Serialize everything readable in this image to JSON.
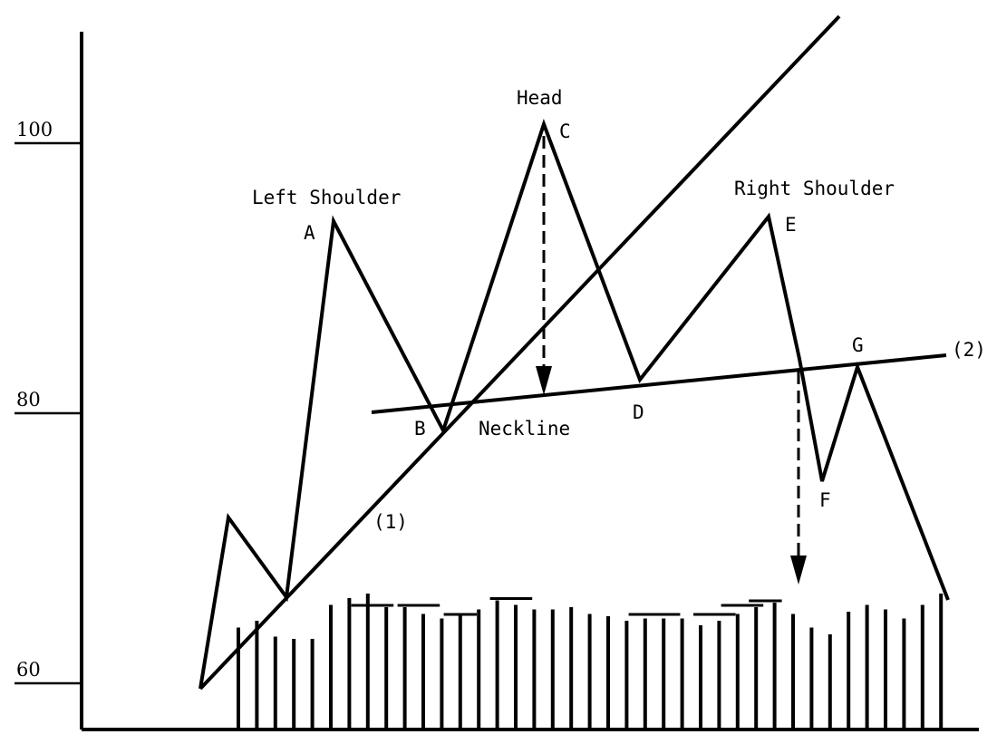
{
  "chart_data": {
    "type": "line",
    "title": "",
    "xlabel": "",
    "ylabel": "",
    "ylim": [
      57,
      112
    ],
    "yticks": [
      {
        "value": 100,
        "label": "100"
      },
      {
        "value": 80,
        "label": "80"
      },
      {
        "value": 60,
        "label": "60"
      }
    ],
    "x_range": [
      0,
      100
    ],
    "price": {
      "x": [
        15,
        17,
        23,
        27,
        28,
        30,
        38,
        45,
        46,
        47,
        56,
        65,
        69,
        70,
        71,
        73,
        75,
        76
      ],
      "y": [
        61.1,
        72.4,
        66.7,
        93.8,
        85,
        86.4,
        77.5,
        78.7,
        79.4,
        79.7,
        101.6,
        82.1,
        91,
        83.9,
        94.7,
        74.2,
        82.3,
        65.1
      ]
    },
    "price_ext": {
      "x": [
        56,
        65,
        76,
        80,
        83,
        86,
        96
      ],
      "y": [
        101.6,
        82.1,
        94.4,
        82.5,
        74.6,
        82.7,
        66.3
      ]
    },
    "trendlines": [
      {
        "id": "trend-1",
        "label": "(1)",
        "x": [
          14,
          88
        ],
        "y": [
          60,
          118.5
        ]
      },
      {
        "id": "neckline-2",
        "label": "(2)",
        "x": [
          34,
          98
        ],
        "y": [
          80.1,
          83.4
        ]
      }
    ],
    "arrows": [
      {
        "id": "head-projection",
        "x": 56,
        "y_from": 101.6,
        "y_to": 81.2
      },
      {
        "id": "breakdown-projection",
        "x": 82,
        "y_from": 82.7,
        "y_to": 65.5
      }
    ],
    "volume": {
      "x": [
        17,
        19,
        21,
        23,
        25,
        27,
        29,
        31,
        33,
        35,
        37,
        39,
        41,
        43,
        45,
        47,
        49,
        51,
        53,
        55,
        57,
        59,
        61,
        63,
        65,
        67,
        69,
        71,
        73,
        75,
        77,
        79,
        81,
        83,
        85,
        87,
        89,
        91,
        93
      ],
      "y": [
        4.5,
        4.8,
        4.1,
        4,
        4,
        5.5,
        5.8,
        6,
        5.4,
        5.4,
        5.1,
        4.9,
        5.1,
        5.3,
        5.7,
        5.5,
        5.3,
        5.3,
        5.4,
        5.1,
        5,
        4.8,
        4.9,
        4.9,
        4.9,
        4.6,
        4.8,
        5.1,
        5.4,
        5.6,
        5.1,
        4.5,
        4.2,
        5.2,
        5.5,
        5.3,
        4.9,
        5.5,
        6
      ],
      "ylim": [
        0,
        10
      ],
      "caps": [
        [
          30,
          33
        ],
        [
          35,
          38
        ],
        [
          40,
          42
        ],
        [
          45,
          48
        ],
        [
          60,
          64
        ],
        [
          67,
          70
        ],
        [
          70,
          73
        ],
        [
          73,
          75
        ]
      ]
    },
    "annotations": [
      {
        "text": "Head",
        "x": 54.5,
        "y": 104.5
      },
      {
        "text": "C",
        "x": 57,
        "y": 100.6
      },
      {
        "text": "Left Shoulder",
        "x": 23.5,
        "y": 96.5
      },
      {
        "text": "A",
        "x": 24.5,
        "y": 91.6
      },
      {
        "text": "Right Shoulder",
        "x": 66.8,
        "y": 96.8
      },
      {
        "text": "E",
        "x": 71.5,
        "y": 91.7
      },
      {
        "text": "B",
        "x": 36.5,
        "y": 76.8
      },
      {
        "text": "Neckline",
        "x": 43.5,
        "y": 76.8
      },
      {
        "text": "D",
        "x": 63.5,
        "y": 78.3
      },
      {
        "text": "G",
        "x": 74.5,
        "y": 84.4
      },
      {
        "text": "(2)",
        "x": 86.5,
        "y": 83.6
      },
      {
        "text": "F",
        "x": 74,
        "y": 72.3
      },
      {
        "text": "(1)",
        "x": 34.5,
        "y": 69.9
      }
    ]
  }
}
